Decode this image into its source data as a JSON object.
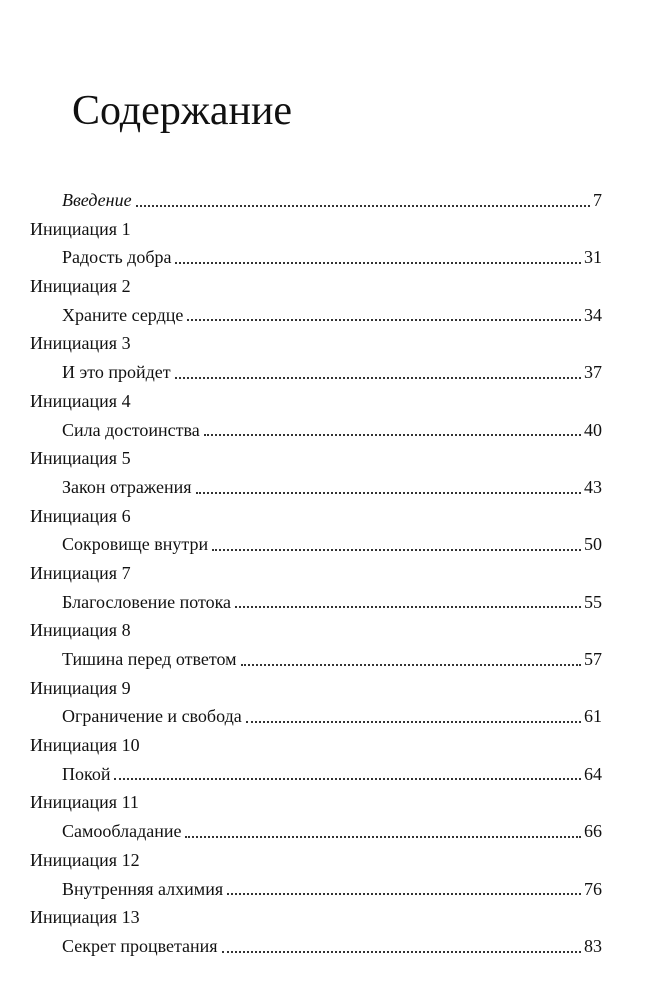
{
  "header": {
    "title": "Содержание"
  },
  "intro": {
    "title": "Введение",
    "page": "7"
  },
  "sections": [
    {
      "label": "Инициация 1",
      "title": "Радость добра",
      "page": "31"
    },
    {
      "label": "Инициация 2",
      "title": "Храните сердце",
      "page": "34"
    },
    {
      "label": "Инициация 3",
      "title": "И это пройдет",
      "page": "37"
    },
    {
      "label": "Инициация 4",
      "title": "Сила достоинства",
      "page": "40"
    },
    {
      "label": "Инициация 5",
      "title": "Закон отражения",
      "page": "43"
    },
    {
      "label": "Инициация 6",
      "title": "Сокровище внутри",
      "page": "50"
    },
    {
      "label": "Инициация 7",
      "title": "Благословение потока",
      "page": "55"
    },
    {
      "label": "Инициация 8",
      "title": "Тишина перед ответом",
      "page": "57"
    },
    {
      "label": "Инициация 9",
      "title": "Ограничение и свобода",
      "page": "61"
    },
    {
      "label": "Инициация 10",
      "title": "Покой",
      "page": "64"
    },
    {
      "label": "Инициация 11",
      "title": "Самообладание",
      "page": "66"
    },
    {
      "label": "Инициация 12",
      "title": "Внутренняя алхимия",
      "page": "76"
    },
    {
      "label": "Инициация 13",
      "title": "Секрет процветания",
      "page": "83"
    }
  ]
}
